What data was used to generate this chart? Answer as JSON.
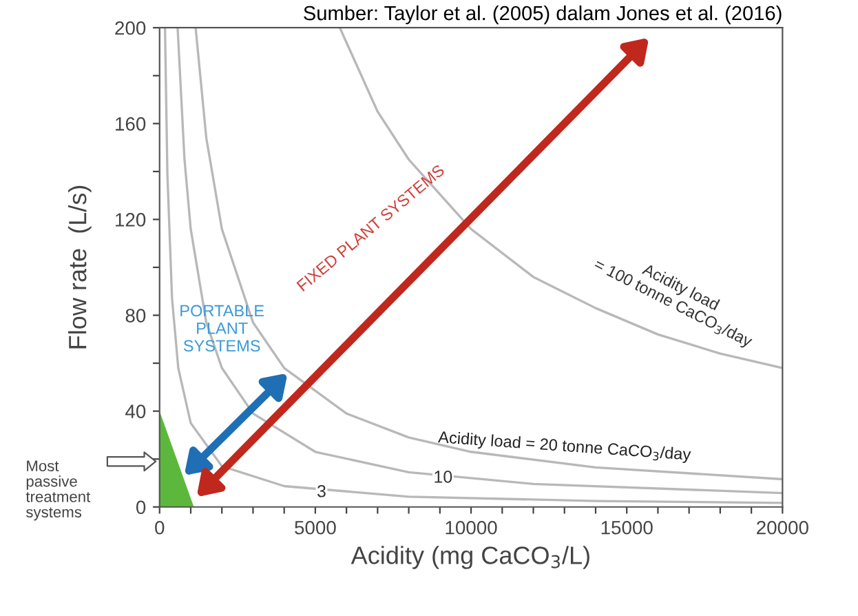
{
  "chart_data": {
    "type": "line",
    "title": "Sumber: Taylor et al. (2005) dalam Jones et al. (2016)",
    "xlabel": "Acidity (mg CaCO$_{3}$/L)",
    "ylabel": "Flow rate  (L/s)",
    "xlim": [
      0,
      20000
    ],
    "ylim": [
      0,
      200
    ],
    "xticks": [
      0,
      {
        "value": 1000,
        "label": null
      },
      {
        "value": 2000,
        "label": null
      },
      {
        "value": 3000,
        "label": null
      },
      {
        "value": 4000,
        "label": null
      },
      5000,
      {
        "value": 6000,
        "label": null
      },
      {
        "value": 7000,
        "label": null
      },
      {
        "value": 8000,
        "label": null
      },
      {
        "value": 9000,
        "label": null
      },
      10000,
      {
        "value": 11000,
        "label": null
      },
      {
        "value": 12000,
        "label": null
      },
      {
        "value": 13000,
        "label": null
      },
      {
        "value": 14000,
        "label": null
      },
      15000,
      {
        "value": 16000,
        "label": null
      },
      {
        "value": 17000,
        "label": null
      },
      {
        "value": 18000,
        "label": null
      },
      {
        "value": 19000,
        "label": null
      },
      20000
    ],
    "yticks": [
      0,
      {
        "value": 20,
        "label": null
      },
      40,
      {
        "value": 60,
        "label": null
      },
      80,
      {
        "value": 100,
        "label": null
      },
      120,
      {
        "value": 140,
        "label": null
      },
      160,
      {
        "value": 180,
        "label": null
      },
      200
    ],
    "grid": false,
    "legend": false,
    "marker": "none",
    "line_style": "solid",
    "series": [
      {
        "type": "area",
        "color": "#5cb83c",
        "x": [
          0,
          1100
        ],
        "values": [
          40,
          0
        ]
      },
      {
        "color": "#b8b8b8",
        "x": [
          174,
          250,
          400,
          600,
          1000,
          2000,
          4000,
          8000,
          14000,
          20000
        ],
        "values": [
          200,
          139,
          87,
          58,
          35,
          17,
          8.7,
          4.3,
          2.5,
          1.7
        ]
      },
      {
        "color": "#b8b8b8",
        "x": [
          579,
          800,
          1000,
          1500,
          2000,
          3000,
          5000,
          8000,
          12000,
          20000
        ],
        "values": [
          200,
          145,
          116,
          77,
          58,
          39,
          23,
          14.5,
          9.6,
          5.8
        ]
      },
      {
        "color": "#b8b8b8",
        "x": [
          1157,
          1500,
          2000,
          3000,
          4000,
          6000,
          8000,
          10000,
          14000,
          20000
        ],
        "values": [
          200,
          154,
          116,
          77,
          58,
          39,
          29,
          23,
          16.5,
          11.6
        ]
      },
      {
        "color": "#b8b8b8",
        "x": [
          5787,
          7000,
          8000,
          10000,
          12000,
          14000,
          16000,
          18000,
          20000
        ],
        "values": [
          200,
          165,
          145,
          116,
          96,
          83,
          72,
          64,
          58
        ]
      }
    ],
    "annotations": [
      {
        "text": "3",
        "x": 5200,
        "y": 6
      },
      {
        "text": "10",
        "x": 9100,
        "y": 12
      },
      "Acidity load = 20 tonne CaCO$_{3}$/day",
      "Acidity load\n= 100 tonne CaCO$_{3}$/day",
      "PORTABLE\nPLANT\nSYSTEMS",
      "FIXED PLANT SYSTEMS",
      "Most\npassive\ntreatment\nsystems"
    ]
  }
}
